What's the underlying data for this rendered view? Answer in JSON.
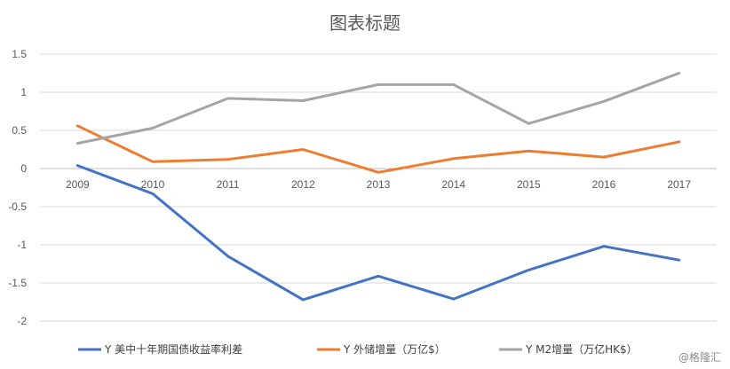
{
  "chart_data": {
    "type": "line",
    "title": "图表标题",
    "categories": [
      "2009",
      "2010",
      "2011",
      "2012",
      "2013",
      "2014",
      "2015",
      "2016",
      "2017"
    ],
    "y_ticks": [
      "1.5",
      "1",
      "0.5",
      "0",
      "-0.5",
      "-1",
      "-1.5",
      "-2"
    ],
    "ylim": [
      -2,
      1.5
    ],
    "grid": true,
    "legend_position": "bottom",
    "series": [
      {
        "name": "Y 美中十年期国债收益率利差",
        "color": "#4472c4",
        "values": [
          0.04,
          -0.33,
          -1.15,
          -1.72,
          -1.41,
          -1.71,
          -1.33,
          -1.02,
          -1.2
        ]
      },
      {
        "name": "Y 外储增量（万亿$）",
        "color": "#ed7d31",
        "values": [
          0.56,
          0.09,
          0.12,
          0.25,
          -0.05,
          0.13,
          0.23,
          0.15,
          0.35
        ]
      },
      {
        "name": "Y M2增量（万亿HK$）",
        "color": "#a5a5a5",
        "values": [
          0.33,
          0.53,
          0.92,
          0.89,
          1.1,
          1.1,
          0.59,
          0.88,
          1.25
        ]
      }
    ]
  },
  "watermark": "@格隆汇"
}
